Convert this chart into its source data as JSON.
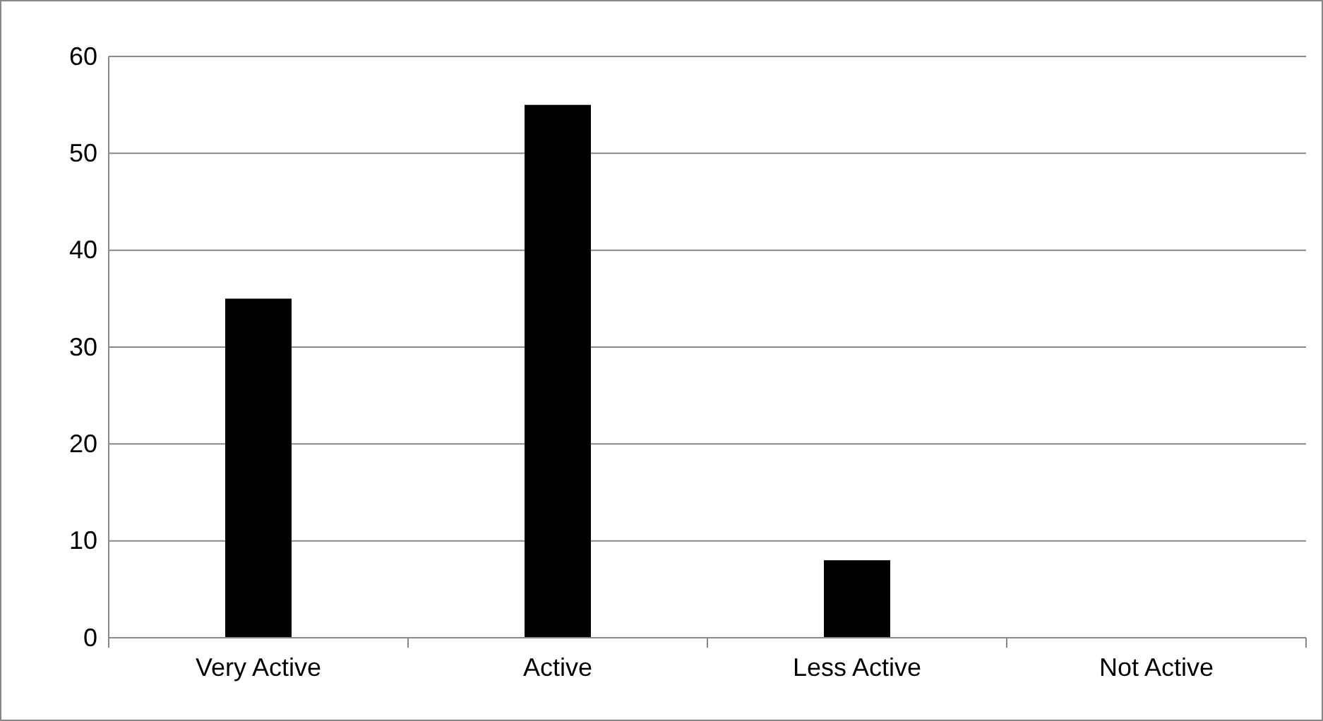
{
  "chart_data": {
    "type": "bar",
    "categories": [
      "Very Active",
      "Active",
      "Less Active",
      "Not Active"
    ],
    "values": [
      35,
      55,
      8,
      0
    ],
    "color": "#000000",
    "ylim": [
      0,
      60
    ],
    "yticks": [
      0,
      10,
      20,
      30,
      40,
      50,
      60
    ],
    "grid": "y"
  }
}
